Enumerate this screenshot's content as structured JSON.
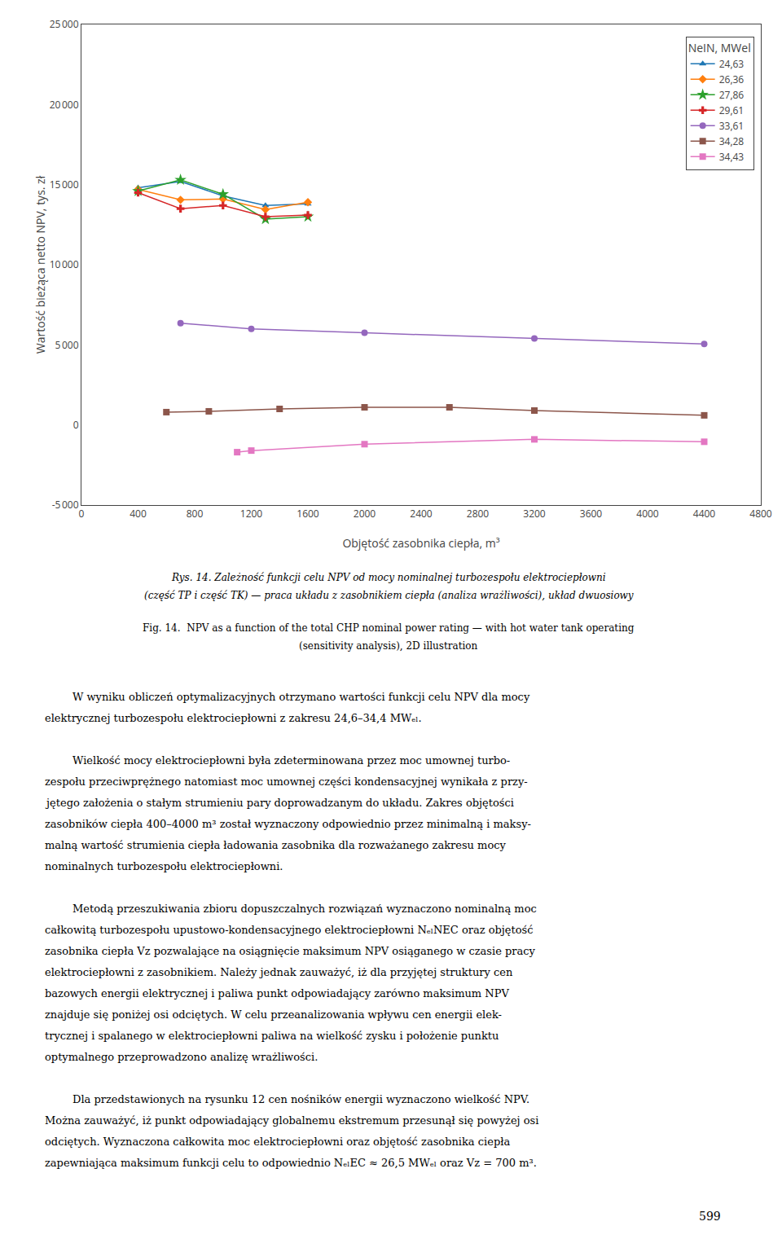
{
  "chart_data": {
    "type": "line",
    "xlabel": "Objętość zasobnika ciepła, m³",
    "ylabel": "Wartość bieżąca netto NPV, tys. zł",
    "xlim": [
      0,
      4800
    ],
    "ylim": [
      -5000,
      25000
    ],
    "xticks": [
      0,
      400,
      800,
      1200,
      1600,
      2000,
      2400,
      2800,
      3200,
      3600,
      4000,
      4400,
      4800
    ],
    "yticks": [
      {
        "value": -5000,
        "label": "-5 000"
      },
      0,
      {
        "value": 5000,
        "label": "5 000"
      },
      {
        "value": 10000,
        "label": "10 000"
      },
      {
        "value": 15000,
        "label": "15 000"
      },
      {
        "value": 20000,
        "label": "20 000"
      },
      {
        "value": 25000,
        "label": "25 000"
      }
    ],
    "grid": false,
    "legend": "upper right",
    "legend_title": "NeIN, MWel",
    "series": [
      {
        "name": "24,63",
        "marker": "triangle-up",
        "x": [
          400,
          700,
          1000,
          1300,
          1600
        ],
        "values": [
          14800,
          15200,
          14300,
          13700,
          13800
        ]
      },
      {
        "name": "26,36",
        "marker": "diamond",
        "x": [
          400,
          700,
          1000,
          1300,
          1600
        ],
        "values": [
          14700,
          14050,
          14100,
          13450,
          13900
        ]
      },
      {
        "name": "27,86",
        "marker": "star",
        "x": [
          400,
          700,
          1000,
          1300,
          1600
        ],
        "values": [
          14600,
          15300,
          14400,
          12850,
          13000
        ]
      },
      {
        "name": "29,61",
        "marker": "cross",
        "x": [
          400,
          700,
          1000,
          1300,
          1600
        ],
        "values": [
          14500,
          13500,
          13700,
          13000,
          13100
        ]
      },
      {
        "name": "33,61",
        "marker": "circle",
        "x": [
          700,
          1200,
          2000,
          3200,
          4400
        ],
        "values": [
          6350,
          6000,
          5750,
          5400,
          5050
        ]
      },
      {
        "name": "34,28",
        "marker": "square",
        "x": [
          600,
          900,
          1400,
          2000,
          2600,
          3200,
          4400
        ],
        "values": [
          800,
          850,
          1000,
          1100,
          1100,
          900,
          600
        ]
      },
      {
        "name": "34,43",
        "marker": "square",
        "x": [
          1100,
          1200,
          2000,
          3200,
          4400
        ],
        "values": [
          -1700,
          -1600,
          -1200,
          -900,
          -1050
        ]
      }
    ],
    "caption": [
      "Rys. 14. Zależność funkcji celu NPV od mocy nominalnej turbozespołu elektrociepłowni",
      "(część TP i część TK) — praca układu z zasobnikiem ciepła (analiza wrażliwości), układ dwuosiowy"
    ],
    "caption_en": [
      "Fig. 14.  NPV as a function of the total CHP nominal power rating — with hot water tank operating",
      "(sensitivity analysis), 2D illustration"
    ],
    "body": [
      [
        "W wyniku obliczeń optymalizacyjnych otrzymano wartości funkcji celu NPV dla mocy",
        "elektrycznej turbozespołu elektrociepłowni z zakresu 24,6–34,4 MWₑₗ."
      ],
      [
        "Wielkość mocy elektrociepłowni była zdeterminowana przez moc umownej turbo-",
        "zespołu przeciwprężnego natomiast moc umownej części kondensacyjnej wynikała z przy-",
        "jętego założenia o stałym strumieniu pary doprowadzanym do układu. Zakres objętości",
        "zasobników ciepła 400–4000 m³ został wyznaczony odpowiednio przez minimalną i maksy-",
        "malną wartość strumienia ciepła ładowania zasobnika dla rozważanego zakresu mocy",
        "nominalnych turbozespołu elektrociepłowni."
      ],
      [
        "Metodą przeszukiwania zbioru dopuszczalnych rozwiązań wyznaczono nominalną moc",
        "całkowitą turbozespołu upustowo-kondensacyjnego elektrociepłowni NₑₗNEC oraz objętość",
        "zasobnika ciepła Vᴢ pozwalające na osiągnięcie maksimum NPV osiąganego w czasie pracy",
        "elektrociepłowni z zasobnikiem. Należy jednak zauważyć, iż dla przyjętej struktury cen",
        "bazowych energii elektrycznej i paliwa punkt odpowiadający zarówno maksimum NPV",
        "znajduje się poniżej osi odciętych. W celu przeanalizowania wpływu cen energii elek-",
        "trycznej i spalanego w elektrociepłowni paliwa na wielkość zysku i położenie punktu",
        "optymalnego przeprowadzono analizę wrażliwości."
      ],
      [
        "Dla przedstawionych na rysunku 12 cen nośników energii wyznaczono wielkość NPV.",
        "Można zauważyć, iż punkt odpowiadający globalnemu ekstremum przesunął się powyżej osi",
        "odciętych. Wyznaczona całkowita moc elektrociepłowni oraz objętość zasobnika ciepła",
        "zapewniająca maksimum funkcji celu to odpowiednio NₑₗEC ≈ 26,5 MWₑₗ oraz Vᴢ = 700 m³."
      ]
    ],
    "page_number": "599"
  }
}
